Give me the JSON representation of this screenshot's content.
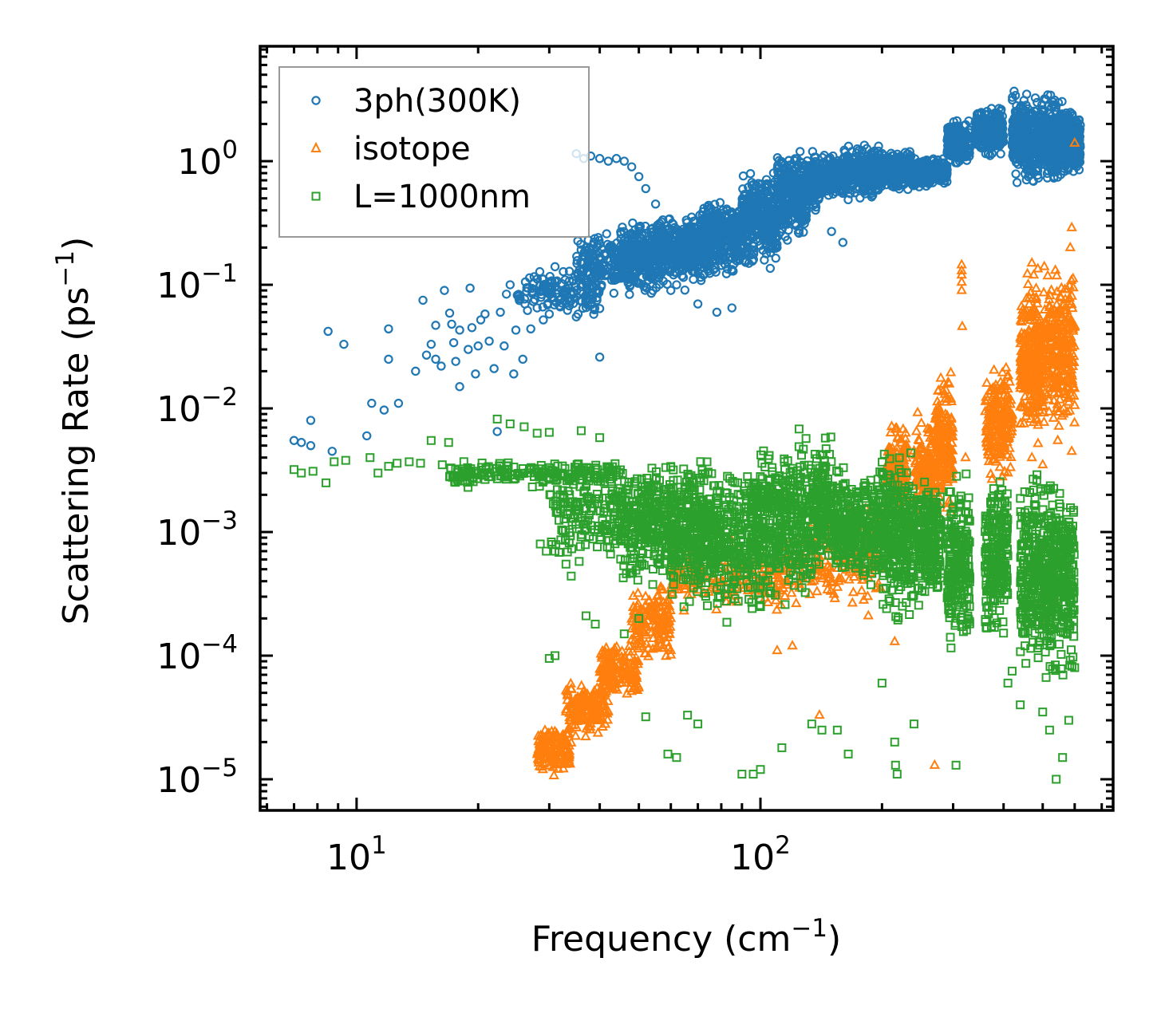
{
  "chart_data": {
    "type": "scatter",
    "title": "",
    "xlabel": "Frequency (cm",
    "xlabel_sup": "−1",
    "xlabel_tail": ")",
    "ylabel": "Scattering Rate (ps",
    "ylabel_sup": "−1",
    "ylabel_tail": ")",
    "xscale": "log",
    "yscale": "log",
    "xlim": [
      5.77,
      747
    ],
    "ylim": [
      5.6e-06,
      8.5
    ],
    "grid": false,
    "legend_position": "top-left",
    "x_ticks": [
      {
        "value": 10,
        "base": "10",
        "exp": "1"
      },
      {
        "value": 100,
        "base": "10",
        "exp": "2"
      }
    ],
    "y_ticks": [
      {
        "value": 1,
        "base": "10",
        "exp": "0"
      },
      {
        "value": 0.1,
        "base": "10",
        "exp": "−1"
      },
      {
        "value": 0.01,
        "base": "10",
        "exp": "−2"
      },
      {
        "value": 0.001,
        "base": "10",
        "exp": "−3"
      },
      {
        "value": 0.0001,
        "base": "10",
        "exp": "−4"
      },
      {
        "value": 1e-05,
        "base": "10",
        "exp": "−5"
      }
    ],
    "series": [
      {
        "name": "3ph(300K)",
        "marker": "circle",
        "color": "#1f77b4",
        "points": [
          [
            7.0,
            0.0055
          ],
          [
            7.3,
            0.0053
          ],
          [
            7.7,
            0.005
          ],
          [
            7.7,
            0.008
          ],
          [
            8.5,
            0.042
          ],
          [
            8.7,
            0.0045
          ],
          [
            9.3,
            0.033
          ],
          [
            10.6,
            0.006
          ],
          [
            10.9,
            0.011
          ],
          [
            11.7,
            0.0097
          ],
          [
            12.0,
            0.044
          ],
          [
            12.0,
            0.025
          ],
          [
            12.7,
            0.011
          ],
          [
            14.0,
            0.02
          ],
          [
            14.6,
            0.075
          ],
          [
            14.9,
            0.027
          ],
          [
            15.3,
            0.033
          ],
          [
            15.7,
            0.047
          ],
          [
            15.7,
            0.025
          ],
          [
            16.2,
            0.022
          ],
          [
            16.5,
            0.09
          ],
          [
            17.0,
            0.059
          ],
          [
            17.2,
            0.048
          ],
          [
            17.4,
            0.034
          ],
          [
            17.6,
            0.024
          ],
          [
            18.0,
            0.015
          ],
          [
            18.0,
            0.043
          ],
          [
            18.9,
            0.03
          ],
          [
            19.1,
            0.094
          ],
          [
            19.3,
            0.045
          ],
          [
            19.7,
            0.019
          ],
          [
            20.0,
            0.032
          ],
          [
            20.3,
            0.052
          ],
          [
            20.8,
            0.058
          ],
          [
            21.3,
            0.035
          ],
          [
            21.9,
            0.021
          ],
          [
            22.3,
            0.0065
          ],
          [
            22.7,
            0.06
          ],
          [
            23.2,
            0.032
          ],
          [
            23.5,
            0.084
          ],
          [
            24.0,
            0.1
          ],
          [
            24.5,
            0.019
          ],
          [
            24.8,
            0.043
          ],
          [
            25.8,
            0.025
          ],
          [
            26.5,
            0.062
          ],
          [
            27.0,
            0.044
          ],
          [
            28.0,
            0.065
          ],
          [
            29.0,
            0.052
          ],
          [
            30.0,
            0.058
          ],
          [
            31.0,
            0.14
          ],
          [
            33.0,
            0.071
          ],
          [
            35.0,
            0.055
          ],
          [
            37.0,
            0.2
          ],
          [
            38.0,
            0.069
          ],
          [
            40.0,
            0.026
          ],
          [
            35.0,
            1.15
          ],
          [
            36.5,
            1.05
          ],
          [
            38.0,
            1.1
          ],
          [
            40.0,
            1.05
          ],
          [
            42.0,
            1.0
          ],
          [
            44.0,
            1.05
          ],
          [
            46.0,
            1.0
          ],
          [
            48.0,
            0.9
          ],
          [
            50.0,
            0.75
          ],
          [
            52.0,
            0.6
          ],
          [
            55.0,
            0.45
          ],
          [
            60.0,
            0.09
          ],
          [
            62.0,
            0.1
          ],
          [
            70.0,
            0.07
          ],
          [
            78.0,
            0.06
          ],
          [
            85.0,
            0.065
          ],
          [
            150.0,
            0.27
          ],
          [
            160.0,
            0.22
          ]
        ],
        "clusters": [
          {
            "x": [
              25,
              40
            ],
            "y": [
              0.05,
              0.15
            ],
            "n": 140
          },
          {
            "x": [
              35,
              55
            ],
            "y": [
              0.07,
              0.3
            ],
            "n": 240
          },
          {
            "x": [
              45,
              75
            ],
            "y": [
              0.08,
              0.4
            ],
            "n": 340
          },
          {
            "x": [
              55,
              90
            ],
            "y": [
              0.1,
              0.45
            ],
            "n": 340
          },
          {
            "x": [
              70,
              110
            ],
            "y": [
              0.12,
              0.6
            ],
            "n": 320
          },
          {
            "x": [
              90,
              130
            ],
            "y": [
              0.2,
              0.9
            ],
            "n": 320
          },
          {
            "x": [
              110,
              140
            ],
            "y": [
              0.3,
              1.3
            ],
            "n": 260
          },
          {
            "x": [
              130,
              160
            ],
            "y": [
              0.45,
              1.2
            ],
            "n": 240
          },
          {
            "x": [
              160,
              200
            ],
            "y": [
              0.45,
              1.5
            ],
            "n": 300
          },
          {
            "x": [
              200,
              240
            ],
            "y": [
              0.55,
              1.3
            ],
            "n": 260
          },
          {
            "x": [
              240,
              290
            ],
            "y": [
              0.6,
              1.1
            ],
            "n": 260
          },
          {
            "x": [
              290,
              330
            ],
            "y": [
              0.9,
              2.3
            ],
            "n": 220
          },
          {
            "x": [
              340,
              400
            ],
            "y": [
              1.0,
              3.0
            ],
            "n": 240
          },
          {
            "x": [
              420,
              500
            ],
            "y": [
              0.55,
              4.2
            ],
            "n": 380
          },
          {
            "x": [
              500,
              560
            ],
            "y": [
              0.6,
              3.8
            ],
            "n": 320
          },
          {
            "x": [
              560,
              620
            ],
            "y": [
              0.7,
              2.8
            ],
            "n": 260
          }
        ]
      },
      {
        "name": "isotope",
        "marker": "triangle",
        "color": "#ff7f0e",
        "points": [
          [
            315,
            0.145
          ],
          [
            315,
            0.13
          ],
          [
            315,
            0.12
          ],
          [
            315,
            0.105
          ],
          [
            315,
            0.09
          ],
          [
            316,
            0.046
          ],
          [
            470,
            0.15
          ],
          [
            475,
            0.12
          ],
          [
            590,
            0.29
          ],
          [
            585,
            0.2
          ],
          [
            600,
            1.4
          ],
          [
            270,
            1.3e-05
          ],
          [
            322,
            0.004
          ],
          [
            470,
            0.004
          ],
          [
            500,
            0.0035
          ],
          [
            590,
            0.0045
          ],
          [
            215,
            0.00013
          ],
          [
            185,
            0.00021
          ],
          [
            140,
            3.3e-05
          ],
          [
            120,
            0.00012
          ],
          [
            110,
            0.00011
          ]
        ],
        "clusters": [
          {
            "x": [
              28,
              34
            ],
            "y": [
              1e-05,
              3e-05
            ],
            "n": 140
          },
          {
            "x": [
              33,
              42
            ],
            "y": [
              2e-05,
              7e-05
            ],
            "n": 160
          },
          {
            "x": [
              40,
              50
            ],
            "y": [
              4e-05,
              0.00015
            ],
            "n": 160
          },
          {
            "x": [
              48,
              60
            ],
            "y": [
              8e-05,
              0.0004
            ],
            "n": 160
          },
          {
            "x": [
              60,
              130
            ],
            "y": [
              0.0002,
              0.001
            ],
            "n": 220
          },
          {
            "x": [
              130,
              200
            ],
            "y": [
              0.0002,
              0.002
            ],
            "n": 160
          },
          {
            "x": [
              205,
              230
            ],
            "y": [
              0.001,
              0.01
            ],
            "n": 140
          },
          {
            "x": [
              240,
              270
            ],
            "y": [
              0.001,
              0.01
            ],
            "n": 140
          },
          {
            "x": [
              270,
              300
            ],
            "y": [
              0.001,
              0.025
            ],
            "n": 180
          },
          {
            "x": [
              360,
              420
            ],
            "y": [
              0.002,
              0.03
            ],
            "n": 200
          },
          {
            "x": [
              440,
              500
            ],
            "y": [
              0.004,
              0.15
            ],
            "n": 280
          },
          {
            "x": [
              500,
              600
            ],
            "y": [
              0.005,
              0.2
            ],
            "n": 320
          }
        ]
      },
      {
        "name": "L=1000nm",
        "marker": "square",
        "color": "#2ca02c",
        "points": [
          [
            7.0,
            0.0032
          ],
          [
            7.3,
            0.003
          ],
          [
            7.8,
            0.0031
          ],
          [
            8.4,
            0.0025
          ],
          [
            8.8,
            0.0037
          ],
          [
            9.4,
            0.0038
          ],
          [
            10.8,
            0.004
          ],
          [
            11.3,
            0.003
          ],
          [
            12.0,
            0.0034
          ],
          [
            12.6,
            0.0036
          ],
          [
            13.5,
            0.0037
          ],
          [
            14.4,
            0.0036
          ],
          [
            15.3,
            0.0055
          ],
          [
            16.3,
            0.0035
          ],
          [
            16.9,
            0.0053
          ],
          [
            22.3,
            0.0082
          ],
          [
            24.0,
            0.0075
          ],
          [
            26.0,
            0.0071
          ],
          [
            28.0,
            0.0063
          ],
          [
            30.0,
            0.0064
          ],
          [
            36.0,
            0.0066
          ],
          [
            40.0,
            0.0058
          ],
          [
            28.5,
            0.0008
          ],
          [
            29.5,
            0.0007
          ],
          [
            31.0,
            0.0007
          ],
          [
            33.0,
            0.00055
          ],
          [
            34.0,
            0.00044
          ],
          [
            37.0,
            0.00021
          ],
          [
            39.0,
            0.00018
          ],
          [
            30.0,
            9.5e-05
          ],
          [
            31.0,
            0.0001
          ],
          [
            46.0,
            0.00015
          ],
          [
            50.0,
            0.0002
          ],
          [
            52.0,
            3.2e-05
          ],
          [
            59.0,
            1.6e-05
          ],
          [
            62.0,
            1.5e-05
          ],
          [
            66.0,
            3.3e-05
          ],
          [
            70.0,
            2.8e-05
          ],
          [
            90.0,
            1.1e-05
          ],
          [
            96.0,
            1.1e-05
          ],
          [
            100.0,
            1.2e-05
          ],
          [
            113.0,
            1.8e-05
          ],
          [
            134.0,
            2.8e-05
          ],
          [
            142.0,
            2.5e-05
          ],
          [
            155.0,
            2.5e-05
          ],
          [
            165.0,
            1.6e-05
          ],
          [
            200.0,
            6e-05
          ],
          [
            215.0,
            2e-05
          ],
          [
            216.0,
            1.3e-05
          ],
          [
            218.0,
            1.1e-05
          ],
          [
            240.0,
            2.8e-05
          ],
          [
            305.0,
            1.3e-05
          ],
          [
            410.0,
            6e-05
          ],
          [
            420.0,
            7.5e-05
          ],
          [
            440.0,
            4e-05
          ],
          [
            500.0,
            3.5e-05
          ],
          [
            520.0,
            2.5e-05
          ],
          [
            560.0,
            1.5e-05
          ],
          [
            540.0,
            1e-05
          ],
          [
            580.0,
            3e-05
          ],
          [
            600.0,
            8e-05
          ]
        ],
        "clusters": [
          {
            "x": [
              17,
              45
            ],
            "y": [
              0.0022,
              0.004
            ],
            "n": 200
          },
          {
            "x": [
              30,
              60
            ],
            "y": [
              0.0005,
              0.004
            ],
            "n": 260
          },
          {
            "x": [
              45,
              80
            ],
            "y": [
              0.00025,
              0.0045
            ],
            "n": 380
          },
          {
            "x": [
              60,
              100
            ],
            "y": [
              0.00015,
              0.005
            ],
            "n": 420
          },
          {
            "x": [
              95,
              135
            ],
            "y": [
              0.0002,
              0.0072
            ],
            "n": 420
          },
          {
            "x": [
              135,
              150
            ],
            "y": [
              0.0004,
              0.0072
            ],
            "n": 160
          },
          {
            "x": [
              150,
              200
            ],
            "y": [
              0.0003,
              0.004
            ],
            "n": 360
          },
          {
            "x": [
              200,
              240
            ],
            "y": [
              0.00015,
              0.0058
            ],
            "n": 300
          },
          {
            "x": [
              245,
              280
            ],
            "y": [
              0.0002,
              0.0035
            ],
            "n": 220
          },
          {
            "x": [
              290,
              330
            ],
            "y": [
              0.0001,
              0.0034
            ],
            "n": 220
          },
          {
            "x": [
              360,
              410
            ],
            "y": [
              0.0001,
              0.0038
            ],
            "n": 240
          },
          {
            "x": [
              440,
              520
            ],
            "y": [
              5e-05,
              0.0042
            ],
            "n": 320
          },
          {
            "x": [
              520,
              600
            ],
            "y": [
              5e-05,
              0.0038
            ],
            "n": 300
          }
        ]
      }
    ]
  }
}
